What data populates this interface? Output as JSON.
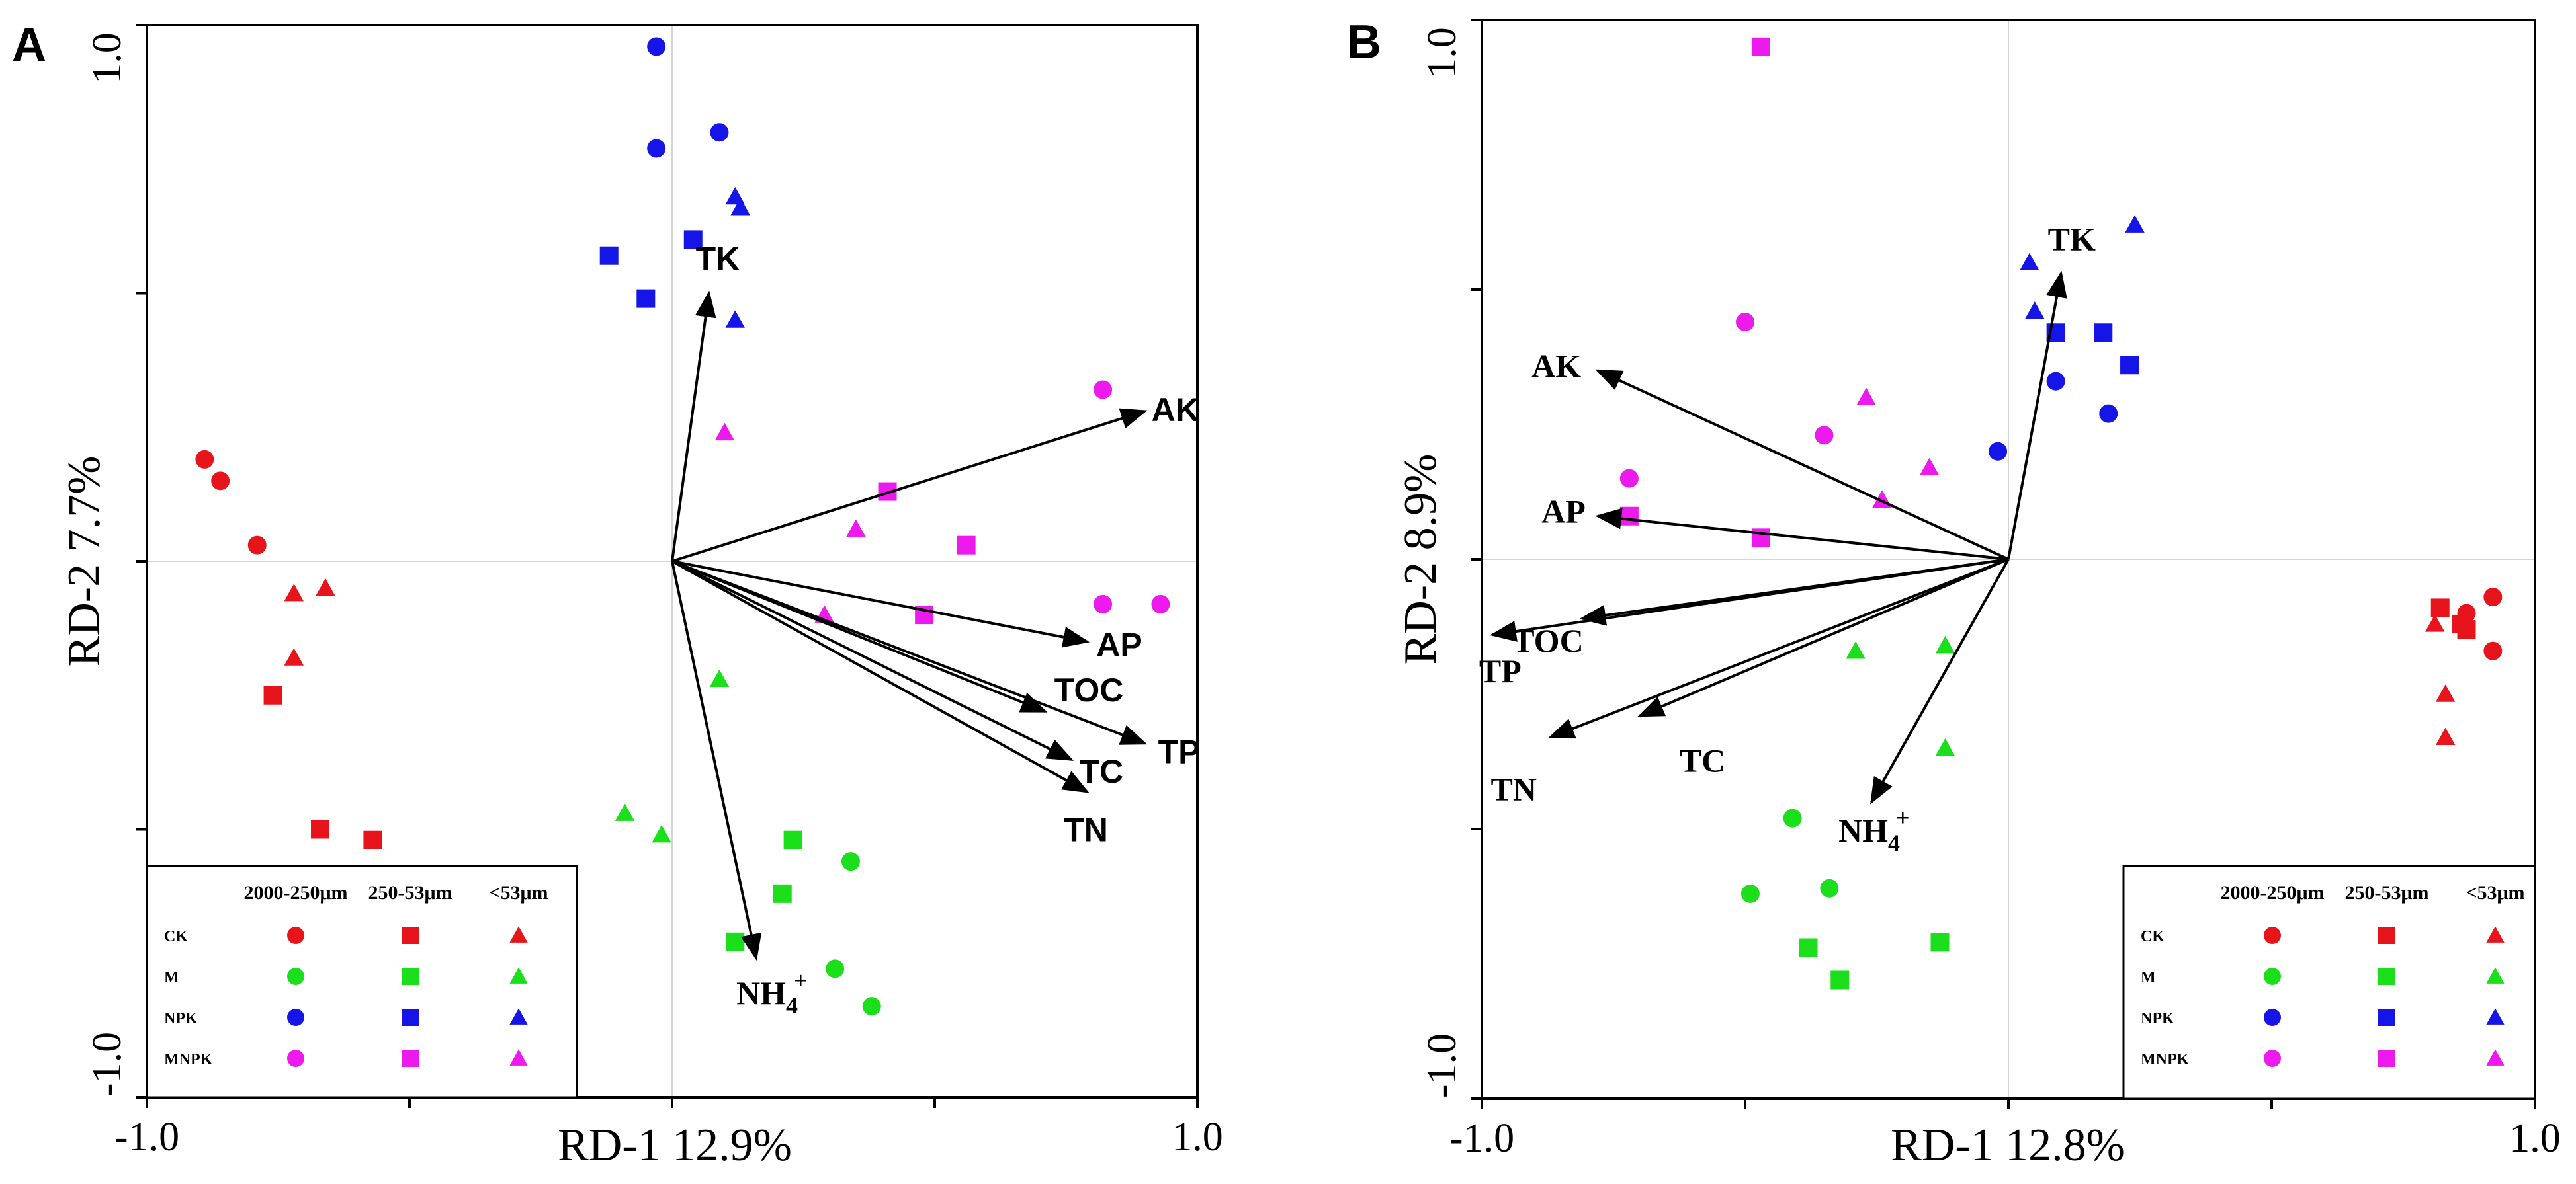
{
  "chart_data": [
    {
      "type": "scatter",
      "subtype": "rda-biplot",
      "panel": "A",
      "xlabel": "RD-1  12.9%",
      "ylabel": "RD-2  7.7%",
      "xlim": [
        -1.0,
        1.0
      ],
      "ylim": [
        -1.0,
        1.0
      ],
      "x_tick_labels": [
        "-1.0",
        "1.0"
      ],
      "y_tick_labels": [
        "1.0",
        "-1.0"
      ],
      "legend_position": "bottom-left",
      "vectors": [
        {
          "name": "TK",
          "x": 0.07,
          "y": 0.5
        },
        {
          "name": "AK",
          "x": 0.9,
          "y": 0.28
        },
        {
          "name": "AP",
          "x": 0.79,
          "y": -0.15
        },
        {
          "name": "TOC",
          "x": 0.71,
          "y": -0.28
        },
        {
          "name": "TP",
          "x": 0.9,
          "y": -0.34
        },
        {
          "name": "TC",
          "x": 0.76,
          "y": -0.37
        },
        {
          "name": "TN",
          "x": 0.79,
          "y": -0.43
        },
        {
          "name": "NH4+",
          "x": 0.16,
          "y": -0.74
        }
      ],
      "series": [
        {
          "treatment": "CK",
          "fraction": "2000-250μm",
          "color": "#e8141b",
          "shape": "circle",
          "points": [
            [
              -0.89,
              0.19
            ],
            [
              -0.86,
              0.15
            ],
            [
              -0.79,
              0.03
            ]
          ]
        },
        {
          "treatment": "CK",
          "fraction": "250-53μm",
          "color": "#e8141b",
          "shape": "square",
          "points": [
            [
              -0.76,
              -0.25
            ],
            [
              -0.67,
              -0.5
            ],
            [
              -0.57,
              -0.52
            ]
          ]
        },
        {
          "treatment": "CK",
          "fraction": "<53μm",
          "color": "#e8141b",
          "shape": "triangle",
          "points": [
            [
              -0.72,
              -0.06
            ],
            [
              -0.66,
              -0.05
            ],
            [
              -0.72,
              -0.18
            ]
          ]
        },
        {
          "treatment": "M",
          "fraction": "2000-250μm",
          "color": "#1adf1a",
          "shape": "circle",
          "points": [
            [
              0.34,
              -0.56
            ],
            [
              0.31,
              -0.76
            ],
            [
              0.38,
              -0.83
            ]
          ]
        },
        {
          "treatment": "M",
          "fraction": "250-53μm",
          "color": "#1adf1a",
          "shape": "square",
          "points": [
            [
              0.23,
              -0.52
            ],
            [
              0.21,
              -0.62
            ],
            [
              0.12,
              -0.71
            ]
          ]
        },
        {
          "treatment": "M",
          "fraction": "<53μm",
          "color": "#1adf1a",
          "shape": "triangle",
          "points": [
            [
              0.09,
              -0.22
            ],
            [
              -0.09,
              -0.47
            ],
            [
              -0.02,
              -0.51
            ]
          ]
        },
        {
          "treatment": "NPK",
          "fraction": "2000-250μm",
          "color": "#1515e8",
          "shape": "circle",
          "points": [
            [
              -0.03,
              0.96
            ],
            [
              -0.03,
              0.77
            ],
            [
              0.09,
              0.8
            ]
          ]
        },
        {
          "treatment": "NPK",
          "fraction": "250-53μm",
          "color": "#1515e8",
          "shape": "square",
          "points": [
            [
              -0.12,
              0.57
            ],
            [
              0.04,
              0.6
            ],
            [
              -0.05,
              0.49
            ]
          ]
        },
        {
          "treatment": "NPK",
          "fraction": "<53μm",
          "color": "#1515e8",
          "shape": "triangle",
          "points": [
            [
              0.12,
              0.68
            ],
            [
              0.13,
              0.66
            ],
            [
              0.12,
              0.45
            ]
          ]
        },
        {
          "treatment": "MNPK",
          "fraction": "2000-250μm",
          "color": "#ec1aec",
          "shape": "circle",
          "points": [
            [
              0.82,
              0.32
            ],
            [
              0.82,
              -0.08
            ],
            [
              0.93,
              -0.08
            ]
          ]
        },
        {
          "treatment": "MNPK",
          "fraction": "250-53μm",
          "color": "#ec1aec",
          "shape": "square",
          "points": [
            [
              0.41,
              0.13
            ],
            [
              0.56,
              0.03
            ],
            [
              0.48,
              -0.1
            ]
          ]
        },
        {
          "treatment": "MNPK",
          "fraction": "<53μm",
          "color": "#ec1aec",
          "shape": "triangle",
          "points": [
            [
              0.1,
              0.24
            ],
            [
              0.35,
              0.06
            ],
            [
              0.29,
              -0.1
            ]
          ]
        }
      ]
    },
    {
      "type": "scatter",
      "subtype": "rda-biplot",
      "panel": "B",
      "xlabel": "RD-1  12.8%",
      "ylabel": "RD-2  8.9%",
      "xlim": [
        -1.0,
        1.0
      ],
      "ylim": [
        -1.0,
        1.0
      ],
      "x_tick_labels": [
        "-1.0",
        "1.0"
      ],
      "y_tick_labels": [
        "1.0",
        "-1.0"
      ],
      "legend_position": "bottom-right",
      "vectors": [
        {
          "name": "TK",
          "x": 0.1,
          "y": 0.53
        },
        {
          "name": "AK",
          "x": -0.78,
          "y": 0.35
        },
        {
          "name": "AP",
          "x": -0.78,
          "y": 0.08
        },
        {
          "name": "TOC",
          "x": -0.81,
          "y": -0.11
        },
        {
          "name": "TP",
          "x": -0.98,
          "y": -0.14
        },
        {
          "name": "TC",
          "x": -0.7,
          "y": -0.29
        },
        {
          "name": "TN",
          "x": -0.87,
          "y": -0.33
        },
        {
          "name": "NH4+",
          "x": -0.26,
          "y": -0.45
        }
      ],
      "series": [
        {
          "treatment": "CK",
          "fraction": "2000-250μm",
          "color": "#e8141b",
          "shape": "circle",
          "points": [
            [
              0.92,
              -0.07
            ],
            [
              0.87,
              -0.1
            ],
            [
              0.92,
              -0.17
            ]
          ]
        },
        {
          "treatment": "CK",
          "fraction": "250-53μm",
          "color": "#e8141b",
          "shape": "square",
          "points": [
            [
              0.82,
              -0.09
            ],
            [
              0.87,
              -0.13
            ],
            [
              0.86,
              -0.12
            ]
          ]
        },
        {
          "treatment": "CK",
          "fraction": "<53μm",
          "color": "#e8141b",
          "shape": "triangle",
          "points": [
            [
              0.81,
              -0.12
            ],
            [
              0.83,
              -0.25
            ],
            [
              0.83,
              -0.33
            ]
          ]
        },
        {
          "treatment": "M",
          "fraction": "2000-250μm",
          "color": "#1adf1a",
          "shape": "circle",
          "points": [
            [
              -0.41,
              -0.48
            ],
            [
              -0.49,
              -0.62
            ],
            [
              -0.34,
              -0.61
            ]
          ]
        },
        {
          "treatment": "M",
          "fraction": "250-53μm",
          "color": "#1adf1a",
          "shape": "square",
          "points": [
            [
              -0.38,
              -0.72
            ],
            [
              -0.32,
              -0.78
            ],
            [
              -0.13,
              -0.71
            ]
          ]
        },
        {
          "treatment": "M",
          "fraction": "<53μm",
          "color": "#1adf1a",
          "shape": "triangle",
          "points": [
            [
              -0.29,
              -0.17
            ],
            [
              -0.12,
              -0.16
            ],
            [
              -0.12,
              -0.35
            ]
          ]
        },
        {
          "treatment": "NPK",
          "fraction": "2000-250μm",
          "color": "#1515e8",
          "shape": "circle",
          "points": [
            [
              0.09,
              0.33
            ],
            [
              0.19,
              0.27
            ],
            [
              -0.02,
              0.2
            ]
          ]
        },
        {
          "treatment": "NPK",
          "fraction": "250-53μm",
          "color": "#1515e8",
          "shape": "square",
          "points": [
            [
              0.09,
              0.42
            ],
            [
              0.18,
              0.42
            ],
            [
              0.23,
              0.36
            ]
          ]
        },
        {
          "treatment": "NPK",
          "fraction": "<53μm",
          "color": "#1515e8",
          "shape": "triangle",
          "points": [
            [
              0.04,
              0.55
            ],
            [
              0.05,
              0.46
            ],
            [
              0.24,
              0.62
            ]
          ]
        },
        {
          "treatment": "MNPK",
          "fraction": "2000-250μm",
          "color": "#ec1aec",
          "shape": "circle",
          "points": [
            [
              -0.5,
              0.44
            ],
            [
              -0.35,
              0.23
            ],
            [
              -0.72,
              0.15
            ]
          ]
        },
        {
          "treatment": "MNPK",
          "fraction": "250-53μm",
          "color": "#ec1aec",
          "shape": "square",
          "points": [
            [
              -0.47,
              0.95
            ],
            [
              -0.72,
              0.08
            ],
            [
              -0.47,
              0.04
            ]
          ]
        },
        {
          "treatment": "MNPK",
          "fraction": "<53μm",
          "color": "#ec1aec",
          "shape": "triangle",
          "points": [
            [
              -0.27,
              0.3
            ],
            [
              -0.15,
              0.17
            ],
            [
              -0.24,
              0.11
            ]
          ]
        }
      ]
    }
  ],
  "legend": {
    "size_headers": [
      "2000-250μm",
      "250-53μm",
      "<53μm"
    ],
    "treatments": [
      "CK",
      "M",
      "NPK",
      "MNPK"
    ]
  }
}
